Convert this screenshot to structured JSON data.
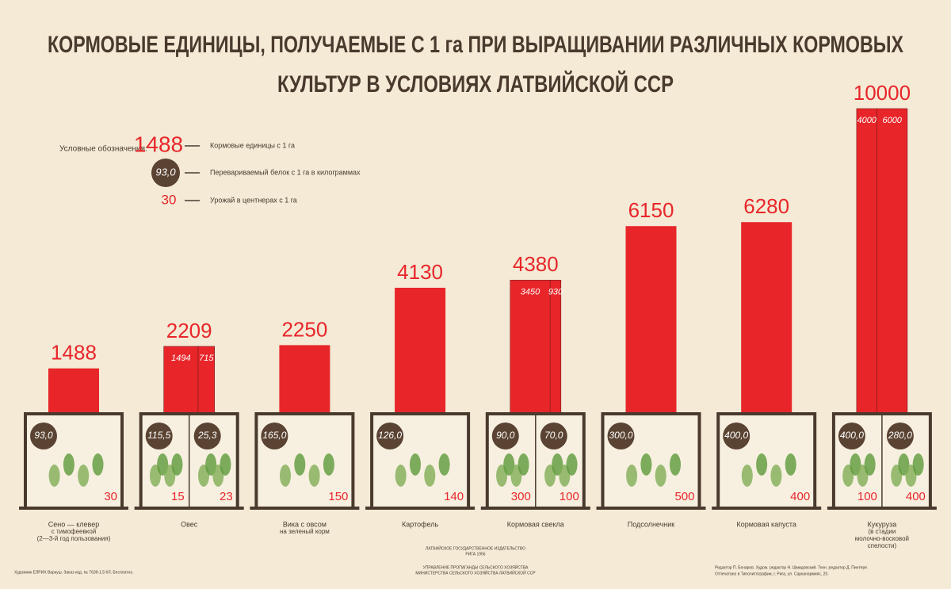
{
  "chart_data": {
    "type": "bar",
    "title": [
      "КОРМОВЫЕ ЕДИНИЦЫ, ПОЛУЧАЕМЫЕ С 1 га ПРИ ВЫРАЩИВАНИИ РАЗЛИЧНЫХ КОРМОВЫХ",
      "КУЛЬТУР В УСЛОВИЯХ ЛАТВИЙСКОЙ ССР"
    ],
    "color": "#e8262a",
    "circle_color": "#5a4332",
    "legend": {
      "heading": "Условные обозначения:",
      "items": [
        {
          "sample": "1488",
          "text": "Кормовые единицы с 1 га"
        },
        {
          "sample": "93,0",
          "text": "Перевариваемый белок с 1 га в килограммах"
        },
        {
          "sample": "30",
          "text": "Урожай в центнерах с 1 га"
        }
      ]
    },
    "bars": [
      {
        "label": [
          "Сено — клевер",
          "с тимофеевкой",
          "(2—3-й год пользования)"
        ],
        "value": 1488,
        "protein": [
          {
            "value": 93.0,
            "label": "93,0"
          }
        ],
        "yield": [
          30
        ]
      },
      {
        "label": [
          "Овес"
        ],
        "value": 2209,
        "parts": [
          1494,
          715
        ],
        "protein": [
          {
            "value": 115.5,
            "label": "115,5"
          },
          {
            "value": 25.3,
            "label": "25,3"
          }
        ],
        "yield": [
          15,
          23
        ]
      },
      {
        "label": [
          "Вика с овсом",
          "на зеленый корм"
        ],
        "value": 2250,
        "protein": [
          {
            "value": 165.0,
            "label": "165,0"
          }
        ],
        "yield": [
          150
        ]
      },
      {
        "label": [
          "Картофель"
        ],
        "value": 4130,
        "protein": [
          {
            "value": 126.0,
            "label": "126,0"
          }
        ],
        "yield": [
          140
        ]
      },
      {
        "label": [
          "Кормовая свекла"
        ],
        "value": 4380,
        "parts": [
          3450,
          930
        ],
        "protein": [
          {
            "value": 90.0,
            "label": "90,0"
          },
          {
            "value": 70.0,
            "label": "70,0"
          }
        ],
        "yield": [
          300,
          100
        ]
      },
      {
        "label": [
          "Подсолнечник"
        ],
        "value": 6150,
        "protein": [
          {
            "value": 300.0,
            "label": "300,0"
          }
        ],
        "yield": [
          500
        ]
      },
      {
        "label": [
          "Кормовая капуста"
        ],
        "value": 6280,
        "protein": [
          {
            "value": 400.0,
            "label": "400,0"
          }
        ],
        "yield": [
          400
        ]
      },
      {
        "label": [
          "Кукуруза",
          "(в стадии",
          "молочно-восковой",
          "спелости)"
        ],
        "value": 10000,
        "parts": [
          4000,
          6000
        ],
        "protein": [
          {
            "value": 400.0,
            "label": "400,0"
          },
          {
            "value": 280.0,
            "label": "280,0"
          }
        ],
        "yield": [
          100,
          400
        ]
      }
    ],
    "footer": {
      "left": "Художник ЕЛРИХ Варкуш. Заказ изд. № 7639-1,5 КЛ. Бесплатно.",
      "center": [
        "ЛАТВИЙСКОЕ ГОСУДАРСТВЕННОЕ ИЗДАТЕЛЬСТВО",
        "РИГА 1956",
        "УПРАВЛЕНИЕ ПРОПАГАНДЫ СЕЛЬСКОГО ХОЗЯЙСТВА",
        "МИНИСТЕРСТВА СЕЛЬСКОГО ХОЗЯЙСТВА ЛАТВИЙСКОЙ ССР"
      ],
      "right": [
        "Редактор П. Бочаров. Худож. редактор Н. Шмидовский. Техн. редактор Д. Пинтере.",
        "Отпечатано в Типолитографии, г. Рига, ул. Сарканармияс, 20."
      ]
    }
  }
}
